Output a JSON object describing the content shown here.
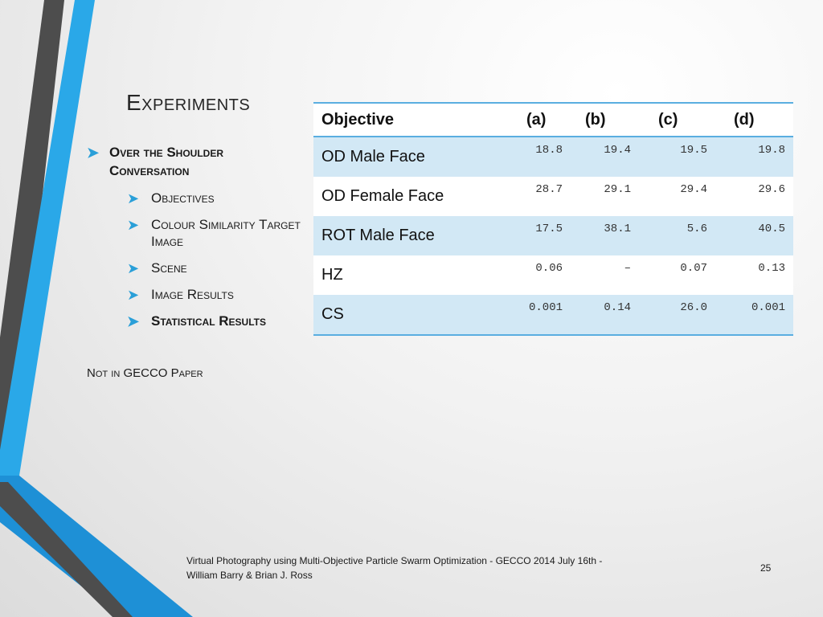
{
  "slide": {
    "title": "Experiments",
    "bullets": {
      "level1": "Over the Shoulder Conversation",
      "level2": [
        "Objectives",
        "Colour Similarity Target Image",
        "Scene",
        "Image Results",
        "Statistical Results"
      ]
    },
    "note": "Not in GECCO Paper",
    "footer": {
      "line1": "Virtual Photography using Multi-Objective Particle Swarm Optimization - GECCO 2014 July 16th  -",
      "line2": "William Barry & Brian J. Ross"
    },
    "page_number": "25"
  },
  "table": {
    "headers": [
      "Objective",
      "(a)",
      "(b)",
      "(c)",
      "(d)"
    ],
    "rows": [
      {
        "label": "OD Male Face",
        "values": [
          "18.8",
          "19.4",
          "19.5",
          "19.8"
        ]
      },
      {
        "label": "OD Female Face",
        "values": [
          "28.7",
          "29.1",
          "29.4",
          "29.6"
        ]
      },
      {
        "label": "ROT Male Face",
        "values": [
          "17.5",
          "38.1",
          "5.6",
          "40.5"
        ]
      },
      {
        "label": "HZ",
        "values": [
          "0.06",
          "–",
          "0.07",
          "0.13"
        ]
      },
      {
        "label": "CS",
        "values": [
          "0.001",
          "0.14",
          "26.0",
          "0.001"
        ]
      }
    ]
  },
  "colors": {
    "accent_blue": "#2aa8e8",
    "dark_stripe": "#4a4a4a",
    "table_rule": "#5aaee0",
    "row_fill": "#d2e8f5"
  },
  "icons": {
    "bullet": "arrow-bullet-icon"
  }
}
